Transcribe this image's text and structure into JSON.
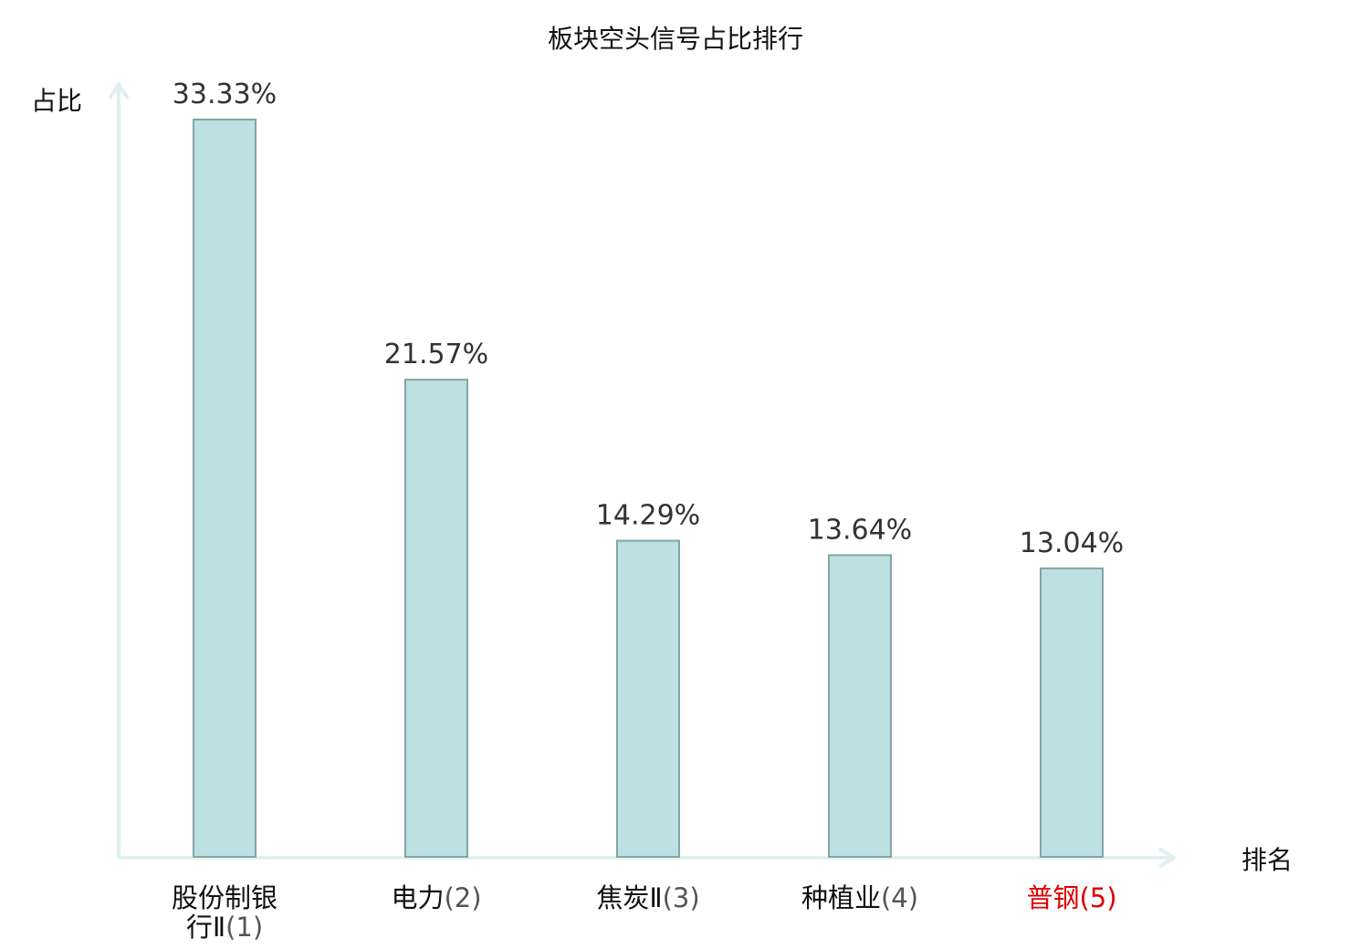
{
  "chart_data": {
    "type": "bar",
    "title": "板块空头信号占比排行",
    "xlabel": "排名",
    "ylabel": "占比",
    "categories": [
      {
        "name": "股份制银行Ⅱ",
        "rank": "(1)",
        "highlight": false
      },
      {
        "name": "电力",
        "rank": "(2)",
        "highlight": false
      },
      {
        "name": "焦炭Ⅱ",
        "rank": "(3)",
        "highlight": false
      },
      {
        "name": "种植业",
        "rank": "(4)",
        "highlight": false
      },
      {
        "name": "普钢",
        "rank": "(5)",
        "highlight": true
      }
    ],
    "values": [
      33.33,
      21.57,
      14.29,
      13.64,
      13.04
    ],
    "value_labels": [
      "33.33%",
      "21.57%",
      "14.29%",
      "13.64%",
      "13.04%"
    ],
    "ylim": [
      0,
      33.33
    ],
    "grid": false,
    "colors": {
      "bar_fill": "#bde0e2",
      "bar_stroke": "#86a3a6",
      "axis": "#dff1ef",
      "highlight_text": "#dd0000",
      "category_text": "#111111",
      "rank_text": "#555555"
    }
  }
}
